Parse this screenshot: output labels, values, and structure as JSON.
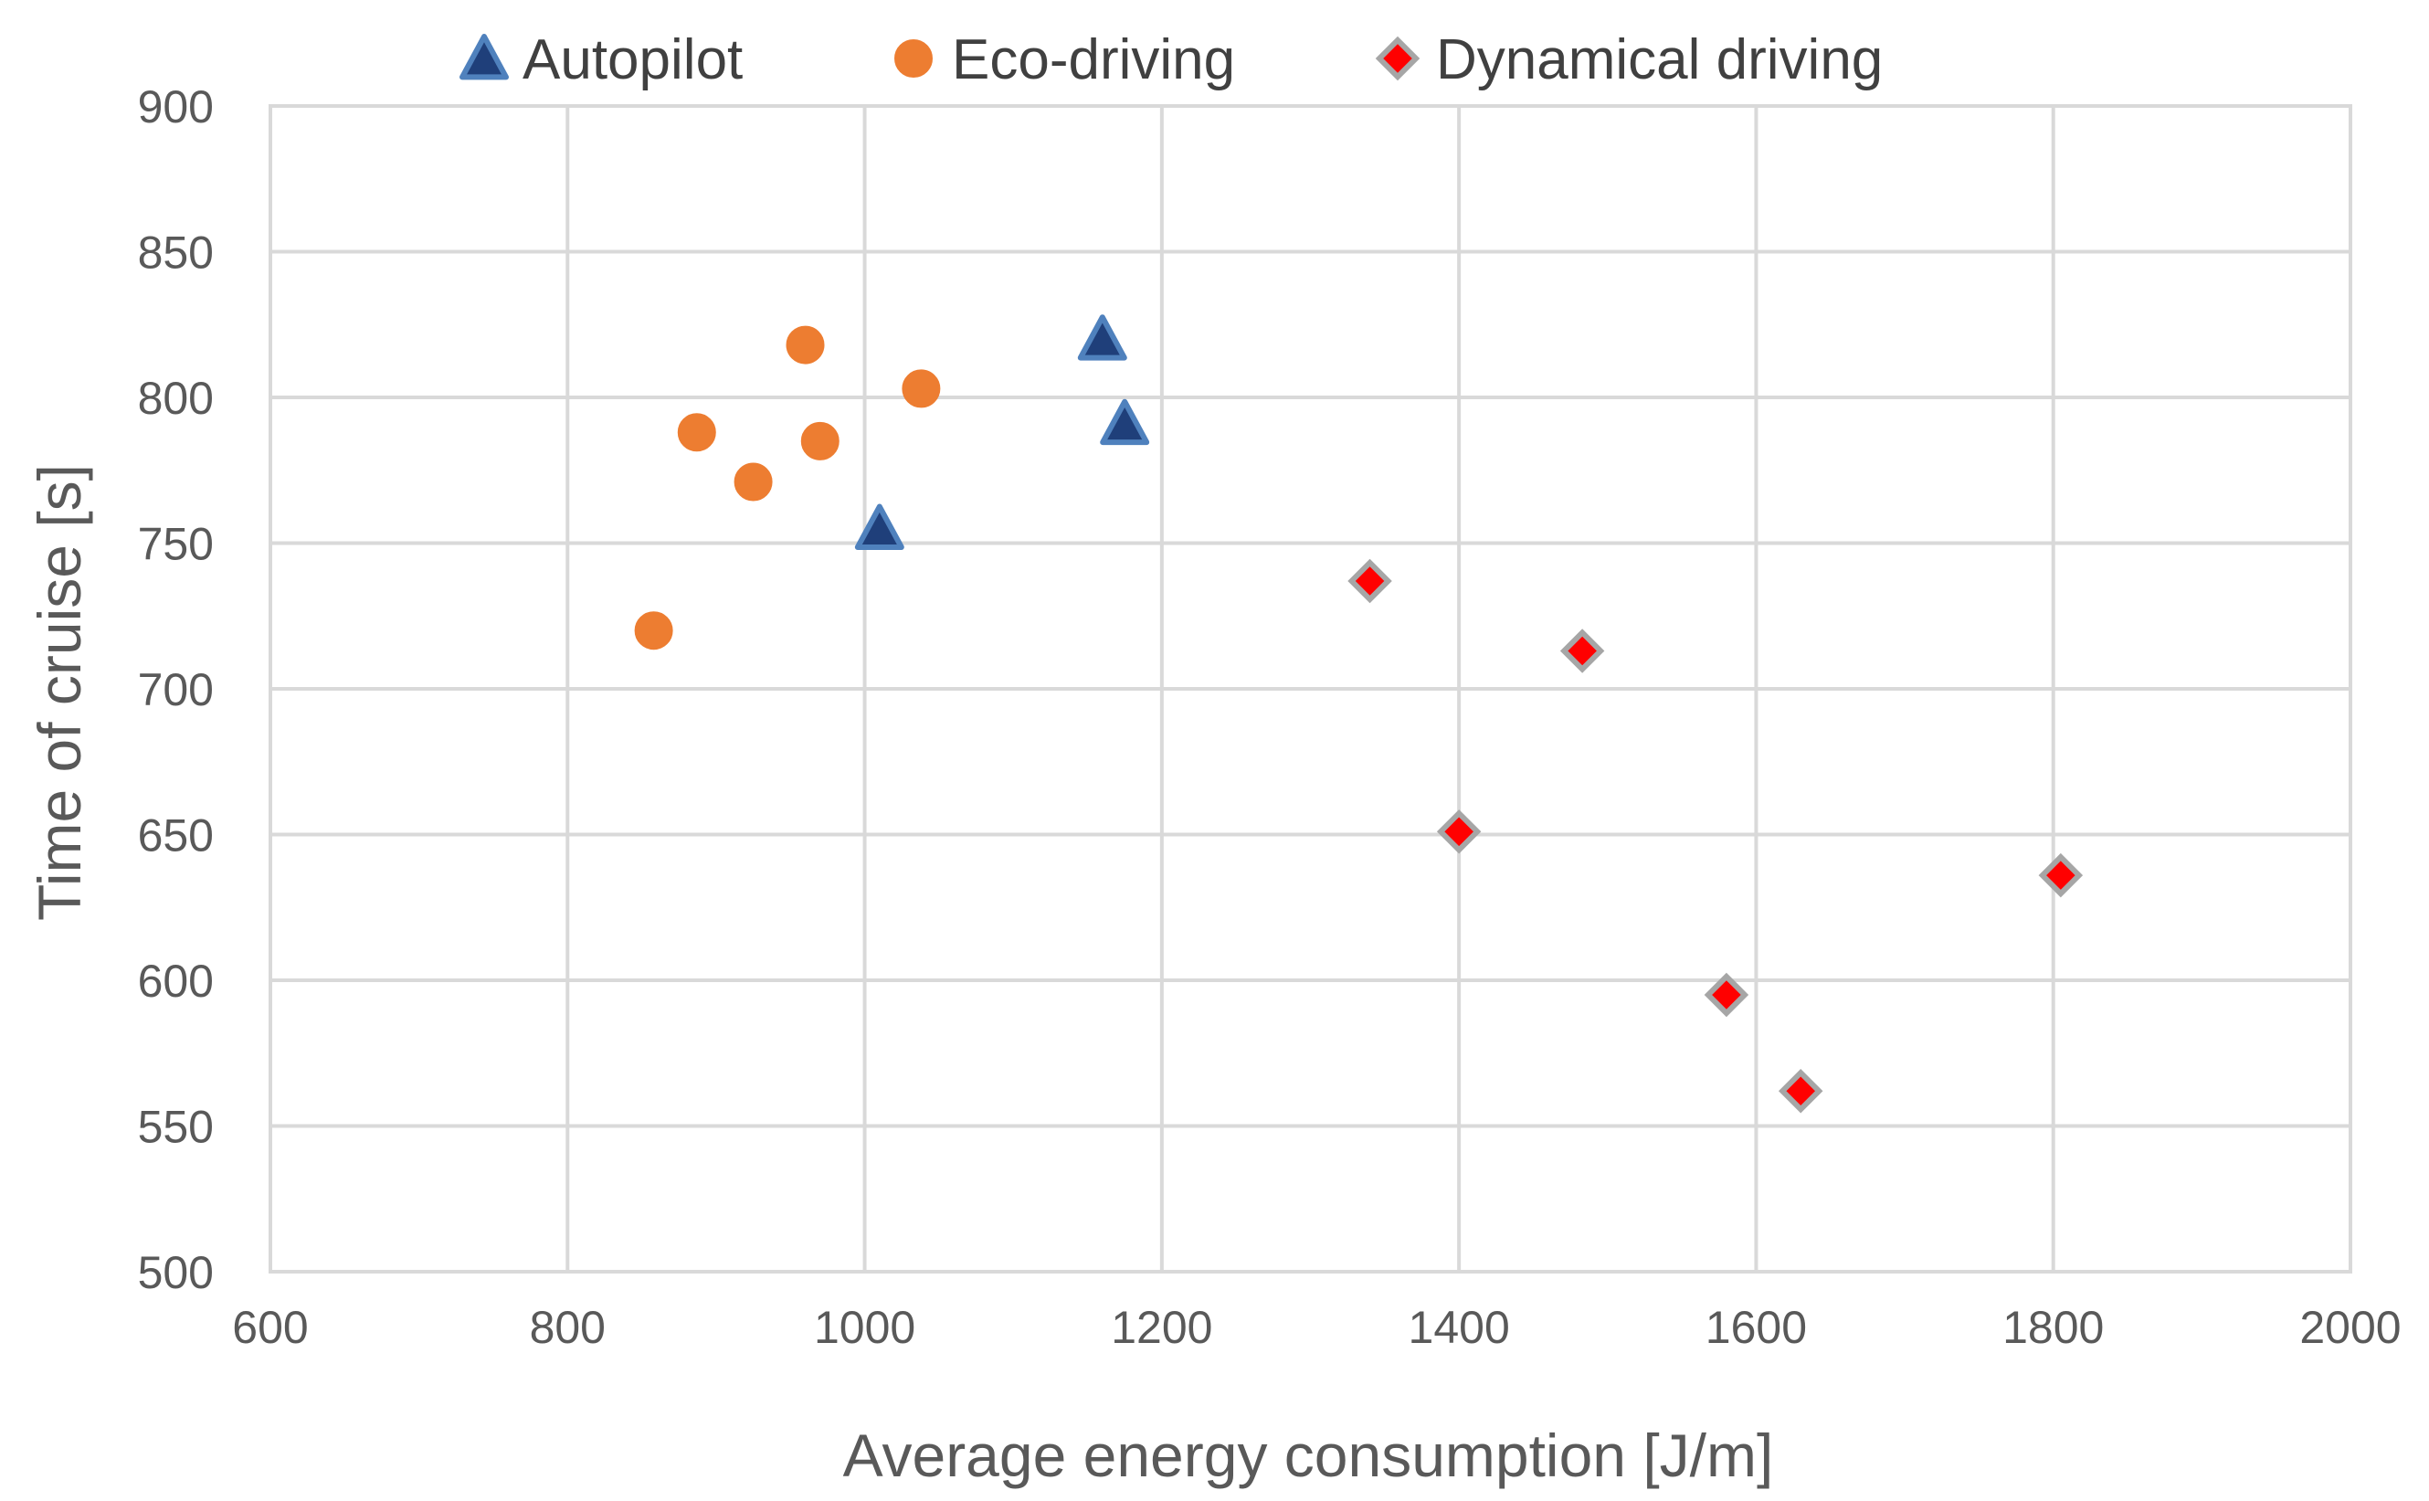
{
  "chart_data": {
    "type": "scatter",
    "title": "",
    "xlabel": "Average energy consumption [J/m]",
    "ylabel": "Time of cruise [s]",
    "xlim": [
      600,
      2000
    ],
    "ylim": [
      500,
      900
    ],
    "xticks": [
      600,
      800,
      1000,
      1200,
      1400,
      1600,
      1800,
      2000
    ],
    "yticks": [
      500,
      550,
      600,
      650,
      700,
      750,
      800,
      850,
      900
    ],
    "grid": true,
    "legend_position": "top",
    "series": [
      {
        "name": "Autopilot",
        "marker": "triangle",
        "color": "#1f3f7a",
        "edge_color": "#4f81bd",
        "points": [
          {
            "x": 1010,
            "y": 755
          },
          {
            "x": 1160,
            "y": 820
          },
          {
            "x": 1175,
            "y": 791
          }
        ]
      },
      {
        "name": "Eco-driving",
        "marker": "circle",
        "color": "#ed7d31",
        "edge_color": "#ed7d31",
        "points": [
          {
            "x": 858,
            "y": 720
          },
          {
            "x": 887,
            "y": 788
          },
          {
            "x": 925,
            "y": 771
          },
          {
            "x": 960,
            "y": 818
          },
          {
            "x": 970,
            "y": 785
          },
          {
            "x": 1038,
            "y": 803
          }
        ]
      },
      {
        "name": "Dynamical driving",
        "marker": "diamond",
        "color": "#ff0000",
        "edge_color": "#a6a6a6",
        "points": [
          {
            "x": 1340,
            "y": 737
          },
          {
            "x": 1400,
            "y": 651
          },
          {
            "x": 1483,
            "y": 713
          },
          {
            "x": 1580,
            "y": 595
          },
          {
            "x": 1630,
            "y": 562
          },
          {
            "x": 1805,
            "y": 636
          }
        ]
      }
    ]
  }
}
